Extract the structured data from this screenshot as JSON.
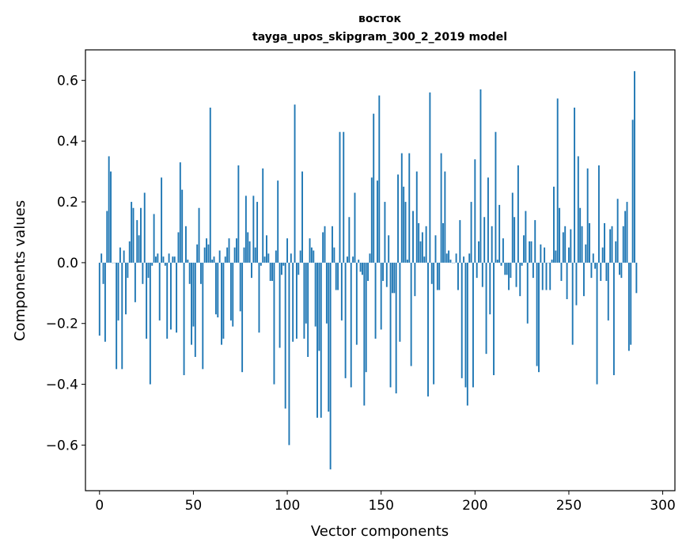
{
  "chart_data": {
    "type": "bar",
    "title": "восток",
    "subtitle": "tayga_upos_skipgram_300_2_2019 model",
    "xlabel": "Vector components",
    "ylabel": "Components values",
    "xlim": [
      -7.5,
      306.5
    ],
    "ylim": [
      -0.75,
      0.7
    ],
    "xticks": [
      0,
      50,
      100,
      150,
      200,
      250,
      300
    ],
    "xtick_labels": [
      "0",
      "50",
      "100",
      "150",
      "200",
      "250",
      "300"
    ],
    "yticks": [
      -0.6,
      -0.4,
      -0.2,
      0.0,
      0.2,
      0.4,
      0.6
    ],
    "ytick_labels": [
      "−0.6",
      "−0.4",
      "−0.2",
      "0.0",
      "0.2",
      "0.4",
      "0.6"
    ],
    "bar_color": "#1f77b4",
    "values": [
      -0.24,
      0.03,
      -0.07,
      -0.26,
      0.17,
      0.35,
      0.3,
      0.0,
      0.0,
      -0.35,
      -0.19,
      0.05,
      -0.35,
      0.04,
      -0.17,
      -0.05,
      0.07,
      0.2,
      0.18,
      -0.13,
      0.14,
      0.09,
      0.18,
      -0.07,
      0.23,
      -0.25,
      -0.05,
      -0.4,
      -0.01,
      0.16,
      0.02,
      0.03,
      -0.19,
      0.28,
      0.02,
      -0.01,
      -0.25,
      0.03,
      -0.22,
      0.02,
      0.02,
      -0.23,
      0.1,
      0.33,
      0.24,
      -0.37,
      0.12,
      0.01,
      -0.07,
      -0.27,
      -0.21,
      -0.31,
      0.06,
      0.18,
      -0.07,
      -0.35,
      0.05,
      0.08,
      0.06,
      0.51,
      0.01,
      0.02,
      -0.17,
      -0.18,
      0.04,
      -0.27,
      -0.25,
      0.02,
      0.05,
      0.08,
      -0.19,
      -0.21,
      0.05,
      0.08,
      0.32,
      -0.16,
      -0.36,
      0.05,
      0.22,
      0.1,
      0.07,
      -0.05,
      0.22,
      0.05,
      0.2,
      -0.23,
      -0.01,
      0.31,
      0.02,
      0.09,
      0.03,
      -0.06,
      -0.06,
      -0.4,
      0.04,
      0.27,
      -0.28,
      -0.04,
      -0.01,
      -0.48,
      0.08,
      -0.6,
      0.03,
      -0.26,
      0.52,
      -0.25,
      -0.04,
      0.04,
      0.3,
      -0.25,
      -0.2,
      -0.31,
      0.08,
      0.05,
      0.04,
      -0.21,
      -0.51,
      -0.29,
      -0.51,
      0.1,
      0.12,
      -0.2,
      -0.49,
      -0.68,
      0.12,
      0.05,
      -0.09,
      -0.09,
      0.43,
      -0.19,
      0.43,
      -0.38,
      0.02,
      0.15,
      -0.41,
      0.02,
      0.23,
      -0.27,
      0.01,
      -0.03,
      -0.04,
      -0.47,
      -0.36,
      -0.06,
      0.03,
      0.28,
      0.49,
      -0.25,
      0.27,
      0.55,
      -0.22,
      -0.06,
      0.2,
      -0.08,
      0.09,
      -0.41,
      -0.1,
      -0.1,
      -0.43,
      0.29,
      -0.26,
      0.36,
      0.25,
      0.2,
      0.01,
      0.36,
      -0.34,
      0.17,
      -0.11,
      0.3,
      0.13,
      0.07,
      0.1,
      0.02,
      0.12,
      -0.44,
      0.56,
      -0.07,
      -0.4,
      0.09,
      -0.09,
      -0.09,
      0.36,
      0.13,
      0.3,
      0.03,
      0.04,
      0.01,
      0.0,
      0.0,
      0.03,
      -0.09,
      0.14,
      -0.38,
      0.02,
      -0.41,
      -0.47,
      0.03,
      0.2,
      -0.41,
      0.34,
      -0.05,
      0.07,
      0.57,
      -0.08,
      0.15,
      -0.3,
      0.28,
      -0.17,
      0.12,
      -0.37,
      0.43,
      0.01,
      0.19,
      -0.01,
      0.08,
      -0.04,
      -0.04,
      -0.09,
      -0.05,
      0.23,
      0.15,
      -0.08,
      0.32,
      -0.11,
      -0.01,
      0.09,
      0.17,
      -0.2,
      0.07,
      0.07,
      -0.05,
      0.14,
      -0.34,
      -0.36,
      0.06,
      -0.09,
      0.05,
      -0.09,
      0.0,
      -0.09,
      0.01,
      0.25,
      0.04,
      0.54,
      0.18,
      -0.06,
      0.1,
      0.12,
      -0.12,
      0.05,
      0.11,
      -0.27,
      0.51,
      -0.14,
      0.35,
      0.18,
      0.12,
      -0.11,
      0.06,
      0.31,
      0.13,
      -0.05,
      0.03,
      -0.02,
      -0.4,
      0.32,
      -0.06,
      0.05,
      0.13,
      -0.06,
      -0.19,
      0.11,
      0.12,
      -0.37,
      0.07,
      0.21,
      -0.04,
      -0.05,
      0.12,
      0.17,
      0.2,
      -0.29,
      -0.27,
      0.47,
      0.63,
      -0.1
    ]
  }
}
